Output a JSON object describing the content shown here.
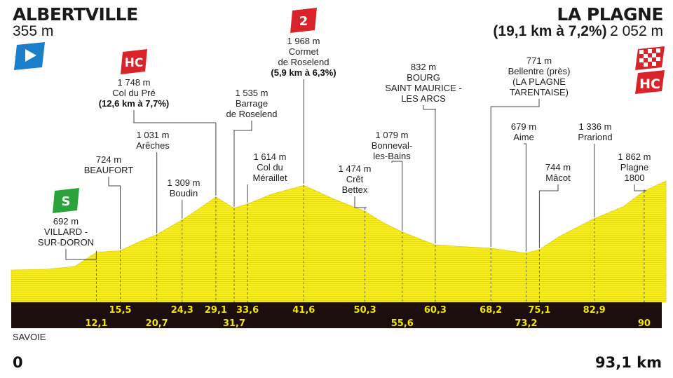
{
  "start": {
    "name": "ALBERTVILLE",
    "altitude": "355 m"
  },
  "finish": {
    "name": "LA PLAGNE",
    "climb": "(19,1 km à 7,2%)",
    "altitude": "2 052 m"
  },
  "region": "SAVOIE",
  "distance_start": "0",
  "distance_end": "93,1 km",
  "colors": {
    "profile_fill": "#f7ee20",
    "profile_stripe": "#e3d40c",
    "band": "#1b0e0c",
    "km_text": "#f2e600",
    "badge_red": "#d8232a",
    "badge_green": "#2aa43a",
    "badge_blue": "#1a7fc8"
  },
  "chart_data": {
    "type": "area",
    "xlim": [
      0,
      93.1
    ],
    "profile": [
      {
        "km": 0,
        "alt": 355
      },
      {
        "km": 5,
        "alt": 370
      },
      {
        "km": 9,
        "alt": 420
      },
      {
        "km": 12.1,
        "alt": 692
      },
      {
        "km": 15.5,
        "alt": 724
      },
      {
        "km": 18,
        "alt": 880
      },
      {
        "km": 20.7,
        "alt": 1031
      },
      {
        "km": 24.3,
        "alt": 1309
      },
      {
        "km": 27,
        "alt": 1550
      },
      {
        "km": 29.1,
        "alt": 1748
      },
      {
        "km": 31.7,
        "alt": 1535
      },
      {
        "km": 33.6,
        "alt": 1614
      },
      {
        "km": 37,
        "alt": 1800
      },
      {
        "km": 41.6,
        "alt": 1968
      },
      {
        "km": 46,
        "alt": 1700
      },
      {
        "km": 50.3,
        "alt": 1474
      },
      {
        "km": 53,
        "alt": 1250
      },
      {
        "km": 55.6,
        "alt": 1079
      },
      {
        "km": 60.3,
        "alt": 832
      },
      {
        "km": 68.2,
        "alt": 771
      },
      {
        "km": 73.2,
        "alt": 679
      },
      {
        "km": 75.1,
        "alt": 744
      },
      {
        "km": 78,
        "alt": 1000
      },
      {
        "km": 82.9,
        "alt": 1336
      },
      {
        "km": 87,
        "alt": 1560
      },
      {
        "km": 90,
        "alt": 1862
      },
      {
        "km": 93.1,
        "alt": 2052
      }
    ]
  },
  "waypoints": [
    {
      "km": "12,1",
      "km_value": 12.1,
      "label_lines": [
        "692 m",
        "VILLARD -",
        "SUR-DORON"
      ],
      "bold_lines": [],
      "badge": "S",
      "km_row": "low"
    },
    {
      "km": "15,5",
      "km_value": 15.5,
      "label_lines": [
        "724 m",
        "BEAUFORT"
      ],
      "bold_lines": [],
      "km_row": "high"
    },
    {
      "km": "20,7",
      "km_value": 20.7,
      "label_lines": [
        "1 031 m",
        "Arêches"
      ],
      "bold_lines": [],
      "km_row": "low"
    },
    {
      "km": "24,3",
      "km_value": 24.3,
      "label_lines": [
        "1 309 m",
        "Boudin"
      ],
      "bold_lines": [],
      "km_row": "high"
    },
    {
      "km": "29,1",
      "km_value": 29.1,
      "label_lines": [
        "1 748 m",
        "Col du Pré"
      ],
      "bold_lines": [
        "(12,6 km à 7,7%)"
      ],
      "badge": "HC",
      "km_row": "high"
    },
    {
      "km": "31,7",
      "km_value": 31.7,
      "label_lines": [
        "1 535 m",
        "Barrage",
        "de Roselend"
      ],
      "bold_lines": [],
      "km_row": "low"
    },
    {
      "km": "33,6",
      "km_value": 33.6,
      "label_lines": [
        "1 614 m",
        "Col du",
        "Méraillet"
      ],
      "bold_lines": [],
      "km_row": "high"
    },
    {
      "km": "41,6",
      "km_value": 41.6,
      "label_lines": [
        "1 968 m",
        "Cormet",
        "de Roselend"
      ],
      "bold_lines": [
        "(5,9 km à 6,3%)"
      ],
      "badge": "2",
      "km_row": "high"
    },
    {
      "km": "50,3",
      "km_value": 50.3,
      "label_lines": [
        "1 474 m",
        "Crêt",
        "Bettex"
      ],
      "bold_lines": [],
      "km_row": "high"
    },
    {
      "km": "55,6",
      "km_value": 55.6,
      "label_lines": [
        "1 079 m",
        "Bonneval-",
        "les-Bains"
      ],
      "bold_lines": [],
      "km_row": "low"
    },
    {
      "km": "60,3",
      "km_value": 60.3,
      "label_lines": [
        "832 m",
        "BOURG",
        "SAINT MAURICE -",
        "LES ARCS"
      ],
      "bold_lines": [],
      "km_row": "high"
    },
    {
      "km": "68,2",
      "km_value": 68.2,
      "label_lines": [
        "771 m",
        "Bellentre (près)",
        "(LA PLAGNE",
        "TARENTAISE)"
      ],
      "bold_lines": [],
      "km_row": "high"
    },
    {
      "km": "73,2",
      "km_value": 73.2,
      "label_lines": [
        "679 m",
        "Aime"
      ],
      "bold_lines": [],
      "km_row": "low"
    },
    {
      "km": "75,1",
      "km_value": 75.1,
      "label_lines": [
        "744 m",
        "Mâcot"
      ],
      "bold_lines": [],
      "km_row": "high"
    },
    {
      "km": "82,9",
      "km_value": 82.9,
      "label_lines": [
        "1 336 m",
        "Prariond"
      ],
      "bold_lines": [],
      "km_row": "high"
    },
    {
      "km": "90",
      "km_value": 90,
      "label_lines": [
        "1 862 m",
        "Plagne",
        "1800"
      ],
      "bold_lines": [],
      "km_row": "low"
    }
  ],
  "finish_badge": "HC",
  "icons": {
    "start": "start-arrow-icon",
    "finish": "checkered-flag-icon"
  }
}
